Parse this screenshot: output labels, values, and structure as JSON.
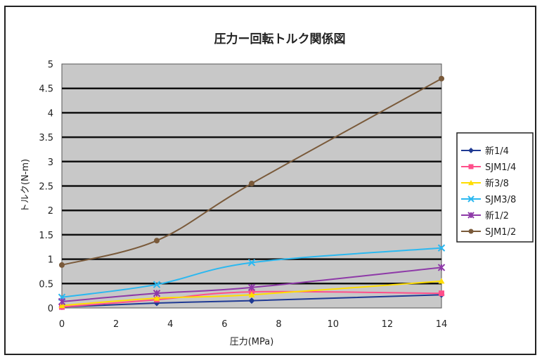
{
  "chart_data": {
    "type": "line",
    "title": "圧力ー回転トルク関係図",
    "xlabel": "圧力(MPa)",
    "ylabel": "トルク(N-m)",
    "xlim": [
      0,
      14
    ],
    "ylim": [
      0,
      5
    ],
    "xticks": [
      "0",
      "2",
      "4",
      "6",
      "8",
      "10",
      "12",
      "14"
    ],
    "yticks": [
      "0",
      "0.5",
      "1",
      "1.5",
      "2",
      "2.5",
      "3",
      "3.5",
      "4",
      "4.5",
      "5"
    ],
    "x": [
      0,
      3.5,
      7,
      14
    ],
    "grid": true,
    "legend": "right",
    "series": [
      {
        "name": "新1/4",
        "values": [
          0.02,
          0.1,
          0.15,
          0.27
        ],
        "color": "#1f3a93",
        "marker": "diamond"
      },
      {
        "name": "SJM1/4",
        "values": [
          0.02,
          0.17,
          0.33,
          0.3
        ],
        "color": "#ff4f8b",
        "marker": "square"
      },
      {
        "name": "新3/8",
        "values": [
          0.05,
          0.2,
          0.27,
          0.55
        ],
        "color": "#ffdd00",
        "marker": "triangle"
      },
      {
        "name": "SJM3/8",
        "values": [
          0.22,
          0.48,
          0.93,
          1.23
        ],
        "color": "#2bb8f0",
        "marker": "x"
      },
      {
        "name": "新1/2",
        "values": [
          0.13,
          0.3,
          0.42,
          0.83
        ],
        "color": "#8e3aa8",
        "marker": "star"
      },
      {
        "name": "SJM1/2",
        "values": [
          0.88,
          1.38,
          2.55,
          4.7
        ],
        "color": "#7a5a3a",
        "marker": "circle"
      }
    ]
  }
}
